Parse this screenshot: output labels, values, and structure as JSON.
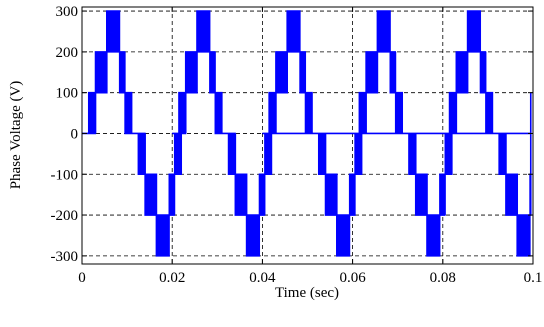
{
  "chart_data": {
    "type": "line",
    "title": "",
    "xlabel": "Time (sec)",
    "ylabel": "Phase Voltage (V)",
    "xlim": [
      0,
      0.1
    ],
    "ylim": [
      -320,
      310
    ],
    "xticks": [
      0,
      0.02,
      0.04,
      0.06,
      0.08,
      0.1
    ],
    "xtick_labels": [
      "0",
      "0.02",
      "0.04",
      "0.06",
      "0.08",
      "0.1"
    ],
    "yticks": [
      300,
      200,
      100,
      0,
      -100,
      -200,
      -300
    ],
    "ytick_labels": [
      "300",
      "200",
      "100",
      "0",
      "-100",
      "-200",
      "-300"
    ],
    "grid": true,
    "grid_style": "dashed",
    "line_color": "#0000ff",
    "series": [
      {
        "period": 0.02,
        "levels_V": [
          0,
          100,
          200,
          300,
          200,
          100,
          0,
          -100,
          -200,
          -300,
          -200,
          -100,
          0
        ],
        "step_boundaries_s": [
          0,
          0.0015,
          0.003,
          0.0055,
          0.0083,
          0.0095,
          0.011,
          0.0125,
          0.014,
          0.0165,
          0.0193,
          0.0205,
          0.022
        ],
        "chatter_V": 100,
        "x_end": 0.0995
      }
    ]
  }
}
